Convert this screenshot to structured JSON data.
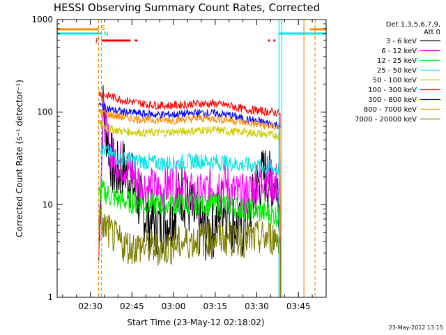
{
  "chart_data": {
    "type": "line",
    "title": "HESSI Observing Summary Count Rates, Corrected",
    "xlabel": "Start Time (23-May-12 02:18:02)",
    "ylabel": "Corrected Count Rate (s⁻¹ detector⁻¹)",
    "y_scale": "log",
    "ylim": [
      1,
      1000
    ],
    "y_tick_labels": [
      "1",
      "10",
      "100",
      "1000"
    ],
    "xlim": [
      "02:18:02",
      "03:55:00"
    ],
    "x_ticks": [
      "02:30",
      "02:45",
      "03:00",
      "03:15",
      "03:30",
      "03:45"
    ],
    "data_start": "02:33:00",
    "data_end": "03:38:30",
    "legend": {
      "placement": "right",
      "header_lines": [
        "Det 1,3,5,6,7,9,",
        "Att 0"
      ]
    },
    "series": [
      {
        "name": "3 - 6 keV",
        "color": "#000000",
        "points": [
          [
            "02:33:00",
            2.5
          ],
          [
            "02:34:30",
            110
          ],
          [
            "02:36:00",
            60
          ],
          [
            "02:38:00",
            25
          ],
          [
            "02:40:00",
            22
          ],
          [
            "02:42:00",
            25
          ],
          [
            "02:45:00",
            18
          ],
          [
            "02:48:00",
            10
          ],
          [
            "02:51:00",
            7
          ],
          [
            "02:55:00",
            6
          ],
          [
            "03:00:00",
            8
          ],
          [
            "03:03:00",
            14
          ],
          [
            "03:06:00",
            9
          ],
          [
            "03:09:00",
            6
          ],
          [
            "03:12:00",
            5
          ],
          [
            "03:15:00",
            6
          ],
          [
            "03:18:00",
            11
          ],
          [
            "03:21:00",
            7
          ],
          [
            "03:24:00",
            5
          ],
          [
            "03:27:00",
            7
          ],
          [
            "03:30:00",
            16
          ],
          [
            "03:33:00",
            21
          ],
          [
            "03:35:00",
            17
          ],
          [
            "03:37:00",
            18
          ],
          [
            "03:38:30",
            9
          ]
        ]
      },
      {
        "name": "6 - 12 keV",
        "color": "#ff00ff",
        "points": [
          [
            "02:33:00",
            2.7
          ],
          [
            "02:34:30",
            95
          ],
          [
            "02:36:00",
            55
          ],
          [
            "02:38:00",
            32
          ],
          [
            "02:40:00",
            30
          ],
          [
            "02:42:00",
            28
          ],
          [
            "02:45:00",
            22
          ],
          [
            "02:48:00",
            17
          ],
          [
            "02:51:00",
            15
          ],
          [
            "02:55:00",
            14
          ],
          [
            "03:00:00",
            17
          ],
          [
            "03:03:00",
            16
          ],
          [
            "03:06:00",
            13
          ],
          [
            "03:09:00",
            12
          ],
          [
            "03:12:00",
            14
          ],
          [
            "03:15:00",
            17
          ],
          [
            "03:18:00",
            18
          ],
          [
            "03:21:00",
            14
          ],
          [
            "03:24:00",
            12
          ],
          [
            "03:27:00",
            13
          ],
          [
            "03:30:00",
            17
          ],
          [
            "03:33:00",
            22
          ],
          [
            "03:35:00",
            18
          ],
          [
            "03:37:00",
            17
          ],
          [
            "03:38:30",
            12
          ]
        ]
      },
      {
        "name": "12 - 25 keV",
        "color": "#00ee00",
        "points": [
          [
            "02:33:00",
            13
          ],
          [
            "02:34:30",
            14
          ],
          [
            "02:38:00",
            12
          ],
          [
            "02:42:00",
            11
          ],
          [
            "02:46:00",
            10.5
          ],
          [
            "02:50:00",
            10
          ],
          [
            "02:55:00",
            10
          ],
          [
            "03:00:00",
            10
          ],
          [
            "03:05:00",
            10.5
          ],
          [
            "03:10:00",
            10
          ],
          [
            "03:15:00",
            10
          ],
          [
            "03:20:00",
            10
          ],
          [
            "03:25:00",
            9
          ],
          [
            "03:30:00",
            8.5
          ],
          [
            "03:34:00",
            8
          ],
          [
            "03:38:30",
            7.5
          ]
        ]
      },
      {
        "name": "25 - 50 keV",
        "color": "#00e5e5",
        "points": [
          [
            "02:33:00",
            45
          ],
          [
            "02:34:30",
            40
          ],
          [
            "02:38:00",
            34
          ],
          [
            "02:42:00",
            31
          ],
          [
            "02:46:00",
            30
          ],
          [
            "02:50:00",
            29
          ],
          [
            "02:55:00",
            28
          ],
          [
            "03:00:00",
            28
          ],
          [
            "03:05:00",
            29
          ],
          [
            "03:10:00",
            30
          ],
          [
            "03:15:00",
            29
          ],
          [
            "03:20:00",
            28
          ],
          [
            "03:25:00",
            27
          ],
          [
            "03:30:00",
            26
          ],
          [
            "03:34:00",
            25
          ],
          [
            "03:38:30",
            24
          ]
        ]
      },
      {
        "name": "50 - 100 keV",
        "color": "#cccc00",
        "points": [
          [
            "02:33:00",
            75
          ],
          [
            "02:34:30",
            72
          ],
          [
            "02:38:00",
            65
          ],
          [
            "02:42:00",
            62
          ],
          [
            "02:46:00",
            61
          ],
          [
            "02:50:00",
            60
          ],
          [
            "02:55:00",
            60
          ],
          [
            "03:00:00",
            61
          ],
          [
            "03:05:00",
            62
          ],
          [
            "03:10:00",
            64
          ],
          [
            "03:15:00",
            64
          ],
          [
            "03:20:00",
            62
          ],
          [
            "03:25:00",
            61
          ],
          [
            "03:30:00",
            59
          ],
          [
            "03:34:00",
            57
          ],
          [
            "03:38:30",
            56
          ]
        ]
      },
      {
        "name": "100 - 300 keV",
        "color": "#ff0000",
        "points": [
          [
            "02:33:00",
            160
          ],
          [
            "02:34:30",
            155
          ],
          [
            "02:38:00",
            145
          ],
          [
            "02:42:00",
            135
          ],
          [
            "02:46:00",
            128
          ],
          [
            "02:50:00",
            122
          ],
          [
            "02:55:00",
            118
          ],
          [
            "03:00:00",
            118
          ],
          [
            "03:05:00",
            122
          ],
          [
            "03:10:00",
            124
          ],
          [
            "03:15:00",
            123
          ],
          [
            "03:20:00",
            118
          ],
          [
            "03:25:00",
            108
          ],
          [
            "03:30:00",
            104
          ],
          [
            "03:34:00",
            101
          ],
          [
            "03:38:30",
            98
          ]
        ]
      },
      {
        "name": "300 - 800 keV",
        "color": "#0000ff",
        "points": [
          [
            "02:33:00",
            120
          ],
          [
            "02:34:30",
            115
          ],
          [
            "02:38:00",
            105
          ],
          [
            "02:42:00",
            100
          ],
          [
            "02:46:00",
            98
          ],
          [
            "02:50:00",
            95
          ],
          [
            "02:55:00",
            94
          ],
          [
            "03:00:00",
            94
          ],
          [
            "03:05:00",
            96
          ],
          [
            "03:10:00",
            98
          ],
          [
            "03:15:00",
            97
          ],
          [
            "03:20:00",
            93
          ],
          [
            "03:25:00",
            85
          ],
          [
            "03:30:00",
            80
          ],
          [
            "03:34:00",
            76
          ],
          [
            "03:38:30",
            72
          ]
        ]
      },
      {
        "name": "800 - 7000 keV",
        "color": "#ff8c00",
        "points": [
          [
            "02:33:00",
            100
          ],
          [
            "02:34:30",
            98
          ],
          [
            "02:38:00",
            92
          ],
          [
            "02:42:00",
            88
          ],
          [
            "02:46:00",
            85
          ],
          [
            "02:50:00",
            83
          ],
          [
            "02:55:00",
            82
          ],
          [
            "03:00:00",
            82
          ],
          [
            "03:05:00",
            84
          ],
          [
            "03:10:00",
            86
          ],
          [
            "03:15:00",
            85
          ],
          [
            "03:20:00",
            82
          ],
          [
            "03:25:00",
            78
          ],
          [
            "03:30:00",
            74
          ],
          [
            "03:34:00",
            71
          ],
          [
            "03:38:30",
            68
          ]
        ]
      },
      {
        "name": "7000 - 20000 keV",
        "color": "#808000",
        "points": [
          [
            "02:33:00",
            7
          ],
          [
            "02:34:30",
            6
          ],
          [
            "02:37:00",
            5
          ],
          [
            "02:40:00",
            4
          ],
          [
            "02:44:00",
            3.5
          ],
          [
            "02:48:00",
            3.5
          ],
          [
            "02:52:00",
            3.5
          ],
          [
            "02:56:00",
            3.3
          ],
          [
            "03:00:00",
            3.6
          ],
          [
            "03:05:00",
            4
          ],
          [
            "03:10:00",
            4.2
          ],
          [
            "03:15:00",
            4.4
          ],
          [
            "03:20:00",
            4.3
          ],
          [
            "03:25:00",
            4.2
          ],
          [
            "03:30:00",
            4.3
          ],
          [
            "03:34:00",
            4.4
          ],
          [
            "03:38:30",
            4.4
          ]
        ]
      }
    ],
    "markers": {
      "S_label": "S",
      "N_label": "N",
      "F_label": "F",
      "S_segments": [
        [
          "02:18:02",
          "02:33:00"
        ],
        [
          "03:49:00",
          "03:55:00"
        ]
      ],
      "N_segments": [
        [
          "02:18:02",
          "02:34:00"
        ],
        [
          "03:38:00",
          "03:55:00"
        ]
      ],
      "F_segments": [
        [
          "02:34:00",
          "02:44:30"
        ],
        [
          "02:46:00",
          "02:47:00"
        ],
        [
          "03:34:00",
          "03:34:45"
        ],
        [
          "03:36:00",
          "03:36:45"
        ]
      ],
      "S_color": "#ff8c00",
      "N_color": "#00e5e5",
      "F_color": "#ff0000"
    },
    "vertical_lines": [
      {
        "time": "02:33:00",
        "color": "#ff8c00",
        "style": "dashed"
      },
      {
        "time": "02:34:00",
        "color": "#00e5e5",
        "style": "dashed"
      },
      {
        "time": "03:38:00",
        "color": "#00e5e5",
        "style": "solid"
      },
      {
        "time": "03:39:00",
        "color": "#00e5e5",
        "style": "solid"
      },
      {
        "time": "03:47:00",
        "color": "#ff8c00",
        "style": "solid"
      },
      {
        "time": "03:51:00",
        "color": "#ff8c00",
        "style": "dashed"
      }
    ]
  },
  "footer": {
    "date_stamp": "23-May-2012 13:15"
  }
}
